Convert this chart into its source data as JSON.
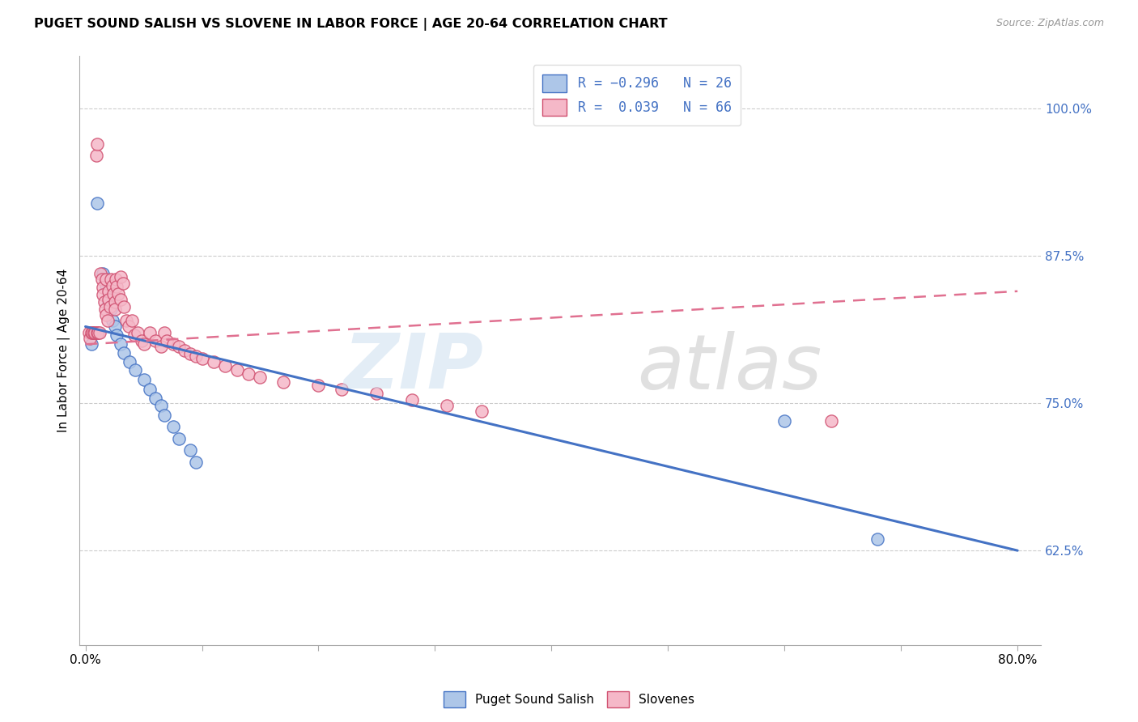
{
  "title": "PUGET SOUND SALISH VS SLOVENE IN LABOR FORCE | AGE 20-64 CORRELATION CHART",
  "source": "Source: ZipAtlas.com",
  "ylabel": "In Labor Force | Age 20-64",
  "ytick_values": [
    0.625,
    0.75,
    0.875,
    1.0
  ],
  "xlim": [
    -0.005,
    0.82
  ],
  "ylim": [
    0.545,
    1.045
  ],
  "blue_color": "#adc6e8",
  "pink_color": "#f5b8c8",
  "blue_line_color": "#4472c4",
  "pink_line_color": "#e07090",
  "blue_trend_x": [
    0.0,
    0.8
  ],
  "blue_trend_y": [
    0.815,
    0.625
  ],
  "pink_trend_x": [
    0.0,
    0.8
  ],
  "pink_trend_y": [
    0.8,
    0.845
  ],
  "blue_scatter_x": [
    0.005,
    0.01,
    0.015,
    0.017,
    0.018,
    0.02,
    0.02,
    0.022,
    0.023,
    0.025,
    0.027,
    0.03,
    0.033,
    0.038,
    0.043,
    0.05,
    0.055,
    0.06,
    0.065,
    0.068,
    0.075,
    0.08,
    0.09,
    0.095,
    0.6,
    0.68
  ],
  "blue_scatter_y": [
    0.8,
    0.92,
    0.86,
    0.855,
    0.85,
    0.845,
    0.835,
    0.83,
    0.82,
    0.815,
    0.808,
    0.8,
    0.793,
    0.785,
    0.778,
    0.77,
    0.762,
    0.754,
    0.748,
    0.74,
    0.73,
    0.72,
    0.71,
    0.7,
    0.735,
    0.635
  ],
  "pink_scatter_x": [
    0.003,
    0.004,
    0.005,
    0.006,
    0.007,
    0.008,
    0.009,
    0.01,
    0.01,
    0.011,
    0.012,
    0.013,
    0.014,
    0.015,
    0.015,
    0.016,
    0.017,
    0.018,
    0.018,
    0.019,
    0.02,
    0.02,
    0.021,
    0.022,
    0.023,
    0.024,
    0.025,
    0.025,
    0.026,
    0.027,
    0.028,
    0.03,
    0.03,
    0.032,
    0.033,
    0.035,
    0.037,
    0.04,
    0.042,
    0.045,
    0.048,
    0.05,
    0.055,
    0.06,
    0.065,
    0.068,
    0.07,
    0.075,
    0.08,
    0.085,
    0.09,
    0.095,
    0.1,
    0.11,
    0.12,
    0.13,
    0.14,
    0.15,
    0.17,
    0.2,
    0.22,
    0.25,
    0.28,
    0.31,
    0.34,
    0.64
  ],
  "pink_scatter_y": [
    0.81,
    0.805,
    0.81,
    0.81,
    0.81,
    0.81,
    0.96,
    0.97,
    0.81,
    0.81,
    0.81,
    0.86,
    0.855,
    0.848,
    0.842,
    0.836,
    0.83,
    0.855,
    0.825,
    0.82,
    0.845,
    0.838,
    0.832,
    0.855,
    0.85,
    0.843,
    0.836,
    0.83,
    0.855,
    0.849,
    0.843,
    0.857,
    0.838,
    0.852,
    0.832,
    0.82,
    0.815,
    0.82,
    0.808,
    0.81,
    0.803,
    0.8,
    0.81,
    0.803,
    0.798,
    0.81,
    0.803,
    0.8,
    0.798,
    0.795,
    0.792,
    0.79,
    0.788,
    0.785,
    0.782,
    0.778,
    0.775,
    0.772,
    0.768,
    0.765,
    0.762,
    0.758,
    0.753,
    0.748,
    0.743,
    0.735
  ],
  "xtick_positions": [
    0.0,
    0.1,
    0.2,
    0.3,
    0.4,
    0.5,
    0.6,
    0.7,
    0.8
  ],
  "xtick_show_labels": [
    true,
    false,
    false,
    false,
    false,
    false,
    false,
    false,
    true
  ],
  "xtick_label_values": [
    "0.0%",
    "80.0%"
  ]
}
